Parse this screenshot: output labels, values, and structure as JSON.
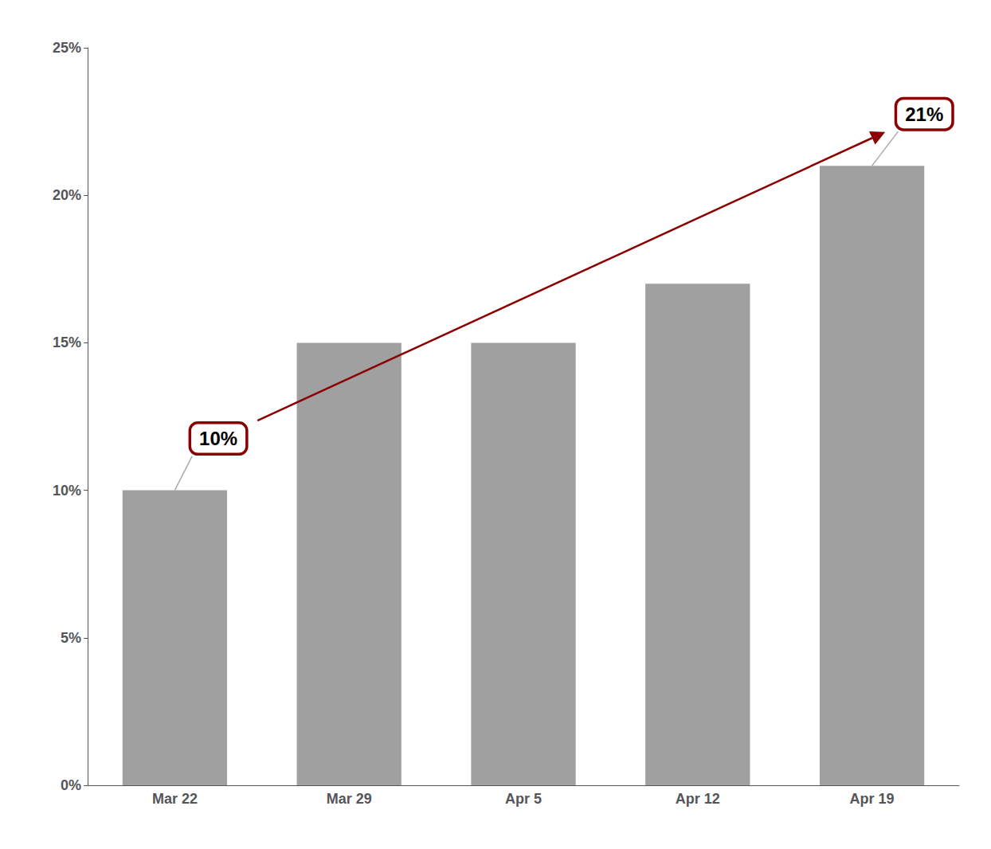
{
  "chart_data": {
    "type": "bar",
    "categories": [
      "Mar 22",
      "Mar 29",
      "Apr 5",
      "Apr 12",
      "Apr 19"
    ],
    "values": [
      10,
      15,
      15,
      17,
      21
    ],
    "color": "#a0a0a0",
    "ylim": [
      0,
      25
    ],
    "yticks": [
      {
        "value": 0,
        "label": "0%"
      },
      {
        "value": 5,
        "label": "5%"
      },
      {
        "value": 10,
        "label": "10%"
      },
      {
        "value": 15,
        "label": "15%"
      },
      {
        "value": 20,
        "label": "20%"
      },
      {
        "value": 25,
        "label": "25%"
      }
    ],
    "grid": false,
    "annotations": [
      {
        "text": "10%",
        "x": "Mar 22",
        "y": 10,
        "color": "#8b0000"
      },
      {
        "text": "21%",
        "x": "Apr 19",
        "y": 21,
        "color": "#8b0000"
      }
    ]
  }
}
